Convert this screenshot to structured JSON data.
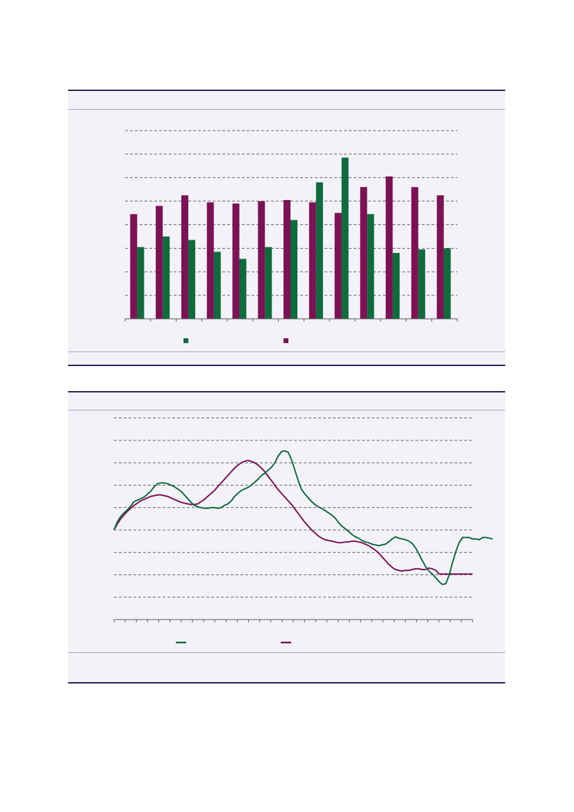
{
  "colors": {
    "green": "#0f6a3c",
    "purple": "#7b1254",
    "panel_bg": "#f3f2f9",
    "rule": "#25255c",
    "grid": "#333333"
  },
  "chart_data": [
    {
      "type": "bar",
      "categories": [
        "",
        "",
        "",
        "",
        "",
        "",
        "",
        "",
        "",
        "",
        "",
        "",
        ""
      ],
      "series": [
        {
          "values": [
            3.05,
            3.5,
            3.35,
            2.85,
            2.55,
            3.05,
            4.2,
            5.8,
            6.85,
            4.45,
            2.8,
            2.95,
            3.0
          ]
        },
        {
          "values": [
            4.45,
            4.8,
            5.25,
            4.95,
            4.9,
            5.0,
            5.05,
            4.95,
            4.5,
            5.6,
            6.05,
            5.6,
            5.25
          ]
        }
      ],
      "ylim": [
        0,
        8
      ],
      "grid": true,
      "legend": "bottom-center"
    },
    {
      "type": "line",
      "x_count": 108,
      "series": [
        {
          "values": [
            0.0,
            1.1,
            1.8,
            2.3,
            2.7,
            3.2,
            3.8,
            4.0,
            4.2,
            4.4,
            4.8,
            5.2,
            5.8,
            6.2,
            6.3,
            6.3,
            6.2,
            6.0,
            5.8,
            5.5,
            5.2,
            4.7,
            4.2,
            3.7,
            3.3,
            3.1,
            3.0,
            2.9,
            2.9,
            3.0,
            3.0,
            2.9,
            3.0,
            3.3,
            3.5,
            3.9,
            4.5,
            4.9,
            5.3,
            5.5,
            5.7,
            6.0,
            6.4,
            6.8,
            7.3,
            7.6,
            8.0,
            8.4,
            9.0,
            9.9,
            10.5,
            10.6,
            10.4,
            9.4,
            8.0,
            6.6,
            5.4,
            4.8,
            4.3,
            3.8,
            3.4,
            3.1,
            2.9,
            2.6,
            2.3,
            2.0,
            1.6,
            1.0,
            0.5,
            0.2,
            -0.2,
            -0.6,
            -0.9,
            -1.1,
            -1.4,
            -1.6,
            -1.7,
            -1.9,
            -2.0,
            -2.1,
            -2.0,
            -1.9,
            -1.6,
            -1.2,
            -0.9,
            -1.1,
            -1.2,
            -1.3,
            -1.5,
            -1.8,
            -2.4,
            -3.2,
            -4.1,
            -4.9,
            -5.5,
            -5.9,
            -6.4,
            -6.9,
            -7.3,
            -7.2,
            -6.1,
            -4.4,
            -2.9,
            -1.7,
            -1.0,
            -1.0,
            -1.0,
            -1.2,
            -1.2,
            -1.3,
            -1.0,
            -1.0,
            -1.1,
            -1.2
          ]
        },
        {
          "values": [
            0.0,
            0.8,
            1.5,
            2.0,
            2.5,
            2.9,
            3.3,
            3.6,
            3.9,
            4.1,
            4.3,
            4.5,
            4.6,
            4.7,
            4.7,
            4.6,
            4.5,
            4.3,
            4.1,
            3.9,
            3.7,
            3.6,
            3.5,
            3.4,
            3.4,
            3.5,
            3.8,
            4.1,
            4.5,
            4.9,
            5.3,
            5.8,
            6.3,
            6.8,
            7.3,
            7.8,
            8.3,
            8.7,
            9.0,
            9.2,
            9.3,
            9.2,
            9.0,
            8.7,
            8.3,
            7.8,
            7.2,
            6.6,
            6.0,
            5.4,
            4.9,
            4.4,
            3.9,
            3.4,
            2.8,
            2.2,
            1.6,
            1.0,
            0.5,
            0.0,
            -0.4,
            -0.8,
            -1.1,
            -1.3,
            -1.4,
            -1.5,
            -1.6,
            -1.7,
            -1.7,
            -1.6,
            -1.6,
            -1.5,
            -1.5,
            -1.6,
            -1.7,
            -1.9,
            -2.1,
            -2.4,
            -2.7,
            -3.1,
            -3.6,
            -4.1,
            -4.6,
            -5.0,
            -5.3,
            -5.4,
            -5.5,
            -5.4,
            -5.4,
            -5.3,
            -5.2,
            -5.2,
            -5.3,
            -5.3,
            -5.1,
            -5.2,
            -5.4,
            -5.9,
            -5.9,
            -5.9,
            -5.9,
            -5.9,
            -5.9,
            -5.9,
            -5.9,
            -5.9,
            -5.9,
            -5.9
          ]
        }
      ],
      "ylim": [
        -12,
        16
      ],
      "grid": true,
      "legend": "bottom-center"
    }
  ]
}
